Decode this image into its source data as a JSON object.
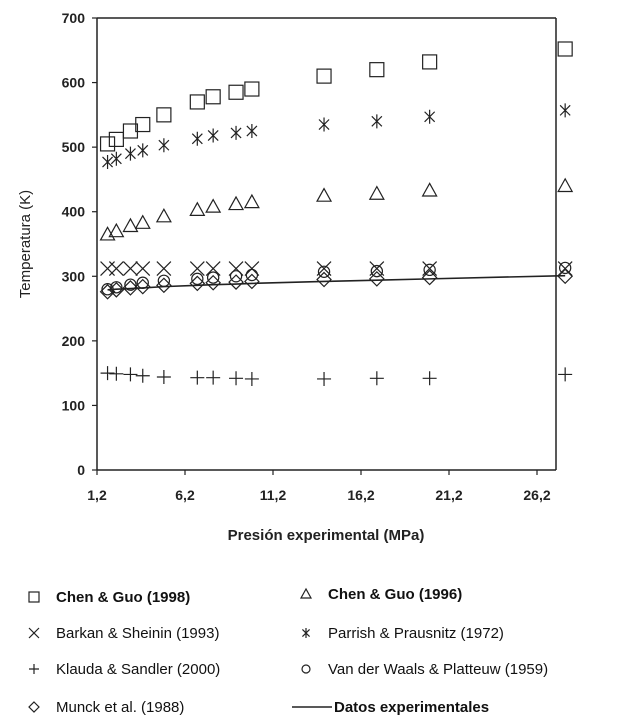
{
  "chart_data": {
    "type": "scatter",
    "xlabel": "Presión experimental (MPa)",
    "ylabel": "Temperatura (K)",
    "xlim": [
      1.2,
      28.5
    ],
    "ylim": [
      0,
      700
    ],
    "x_ticks": [
      "1,2",
      "6,2",
      "11,2",
      "16,2",
      "21,2",
      "26,2"
    ],
    "x_tick_values": [
      1.2,
      6.2,
      11.2,
      16.2,
      21.2,
      26.2
    ],
    "y_ticks": [
      "0",
      "100",
      "200",
      "300",
      "400",
      "500",
      "600",
      "700"
    ],
    "y_tick_values": [
      0,
      100,
      200,
      300,
      400,
      500,
      600,
      700
    ],
    "grid": false,
    "legend_position": "bottom",
    "x": [
      1.8,
      2.3,
      3.1,
      3.8,
      5.0,
      6.9,
      7.8,
      9.1,
      10.0,
      14.1,
      17.1,
      20.1,
      27.8
    ],
    "series": [
      {
        "name": "Chen & Guo (1998)",
        "marker": "square",
        "values": [
          505,
          512,
          525,
          535,
          550,
          570,
          578,
          585,
          590,
          610,
          620,
          632,
          652
        ]
      },
      {
        "name": "Chen & Guo (1996)",
        "marker": "triangle",
        "values": [
          365,
          370,
          378,
          383,
          393,
          403,
          408,
          412,
          415,
          425,
          428,
          433,
          440
        ]
      },
      {
        "name": "Barkan & Sheinin (1993)",
        "marker": "x",
        "values": [
          312,
          312,
          312,
          312,
          312,
          312,
          312,
          312,
          312,
          312,
          312,
          312,
          312
        ]
      },
      {
        "name": "Parrish & Prausnitz (1972)",
        "marker": "asterisk",
        "values": [
          477,
          482,
          490,
          495,
          503,
          513,
          518,
          522,
          525,
          535,
          540,
          547,
          557
        ]
      },
      {
        "name": "Klauda & Sandler (2000)",
        "marker": "plus",
        "values": [
          150,
          149,
          148,
          146,
          144,
          143,
          143,
          142,
          141,
          141,
          142,
          142,
          148
        ]
      },
      {
        "name": "Van der Waals  & Platteuw (1959)",
        "marker": "circle",
        "values": [
          280,
          283,
          287,
          290,
          293,
          296,
          298,
          300,
          302,
          307,
          308,
          310,
          313
        ]
      },
      {
        "name": "Munck et al. (1988)",
        "marker": "diamond",
        "values": [
          276,
          279,
          282,
          284,
          286,
          289,
          290,
          291,
          292,
          295,
          296,
          298,
          300
        ]
      },
      {
        "name": "Datos experimentales",
        "marker": "line",
        "values": [
          279,
          280,
          281,
          282,
          284,
          286,
          287,
          288,
          289,
          292,
          294,
          296,
          301
        ]
      }
    ]
  },
  "colors": {
    "ink": "#222222"
  }
}
